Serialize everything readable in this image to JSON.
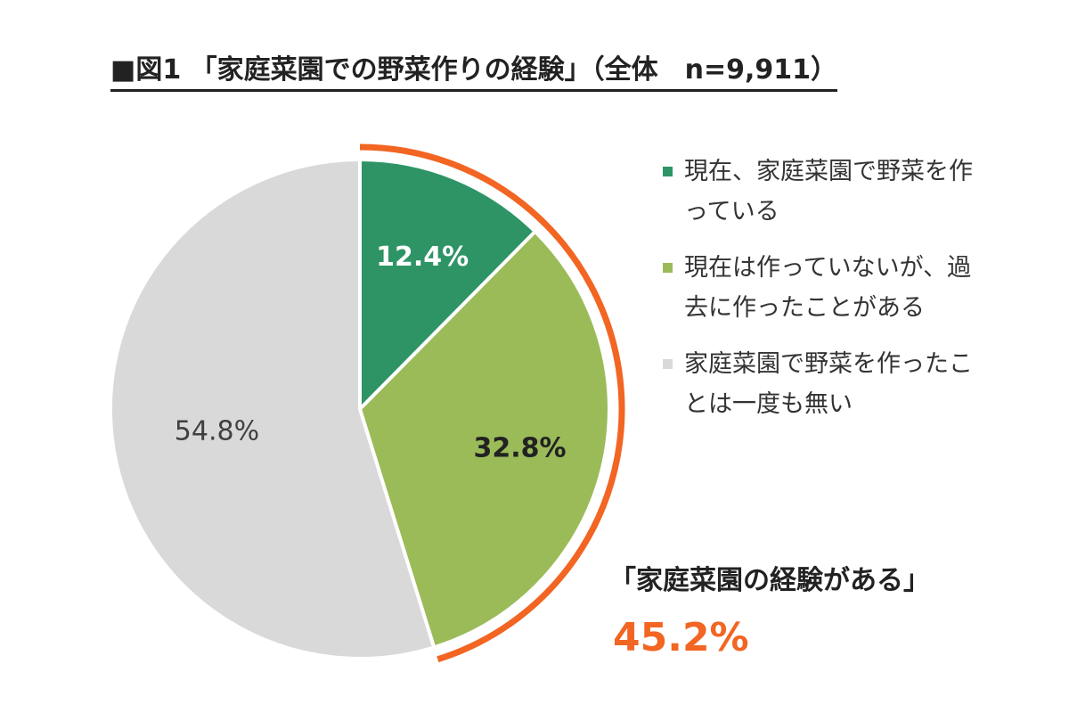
{
  "chart_data": {
    "type": "pie",
    "title": "■図1 「家庭菜園での野菜作りの経験」（全体　n=9,911）",
    "slices": [
      {
        "label": "現在、家庭菜園で野菜を作っている",
        "value": 12.4,
        "display": "12.4%",
        "color": "#2e9466",
        "label_color": "#ffffff",
        "label_bold": true
      },
      {
        "label": "現在は作っていないが、過去に作ったことがある",
        "value": 32.8,
        "display": "32.8%",
        "color": "#9bbb59",
        "label_color": "#222222",
        "label_bold": true
      },
      {
        "label": "家庭菜園で野菜を作ったことは一度も無い",
        "value": 54.8,
        "display": "54.8%",
        "color": "#d9d9d9",
        "label_color": "#404040",
        "label_bold": false
      }
    ],
    "legend": {
      "placement": "right",
      "items": [
        {
          "text": "現在、家庭菜園で野菜を作っている",
          "color": "#2e9466"
        },
        {
          "text": "現在は作っていないが、過去に作ったことがある",
          "color": "#9bbb59"
        },
        {
          "text": "家庭菜園で野菜を作ったことは一度も無い",
          "color": "#d9d9d9"
        }
      ]
    },
    "callout": {
      "label": "「家庭菜園の経験がある」",
      "value": "45.2%",
      "color": "#f26522"
    }
  }
}
